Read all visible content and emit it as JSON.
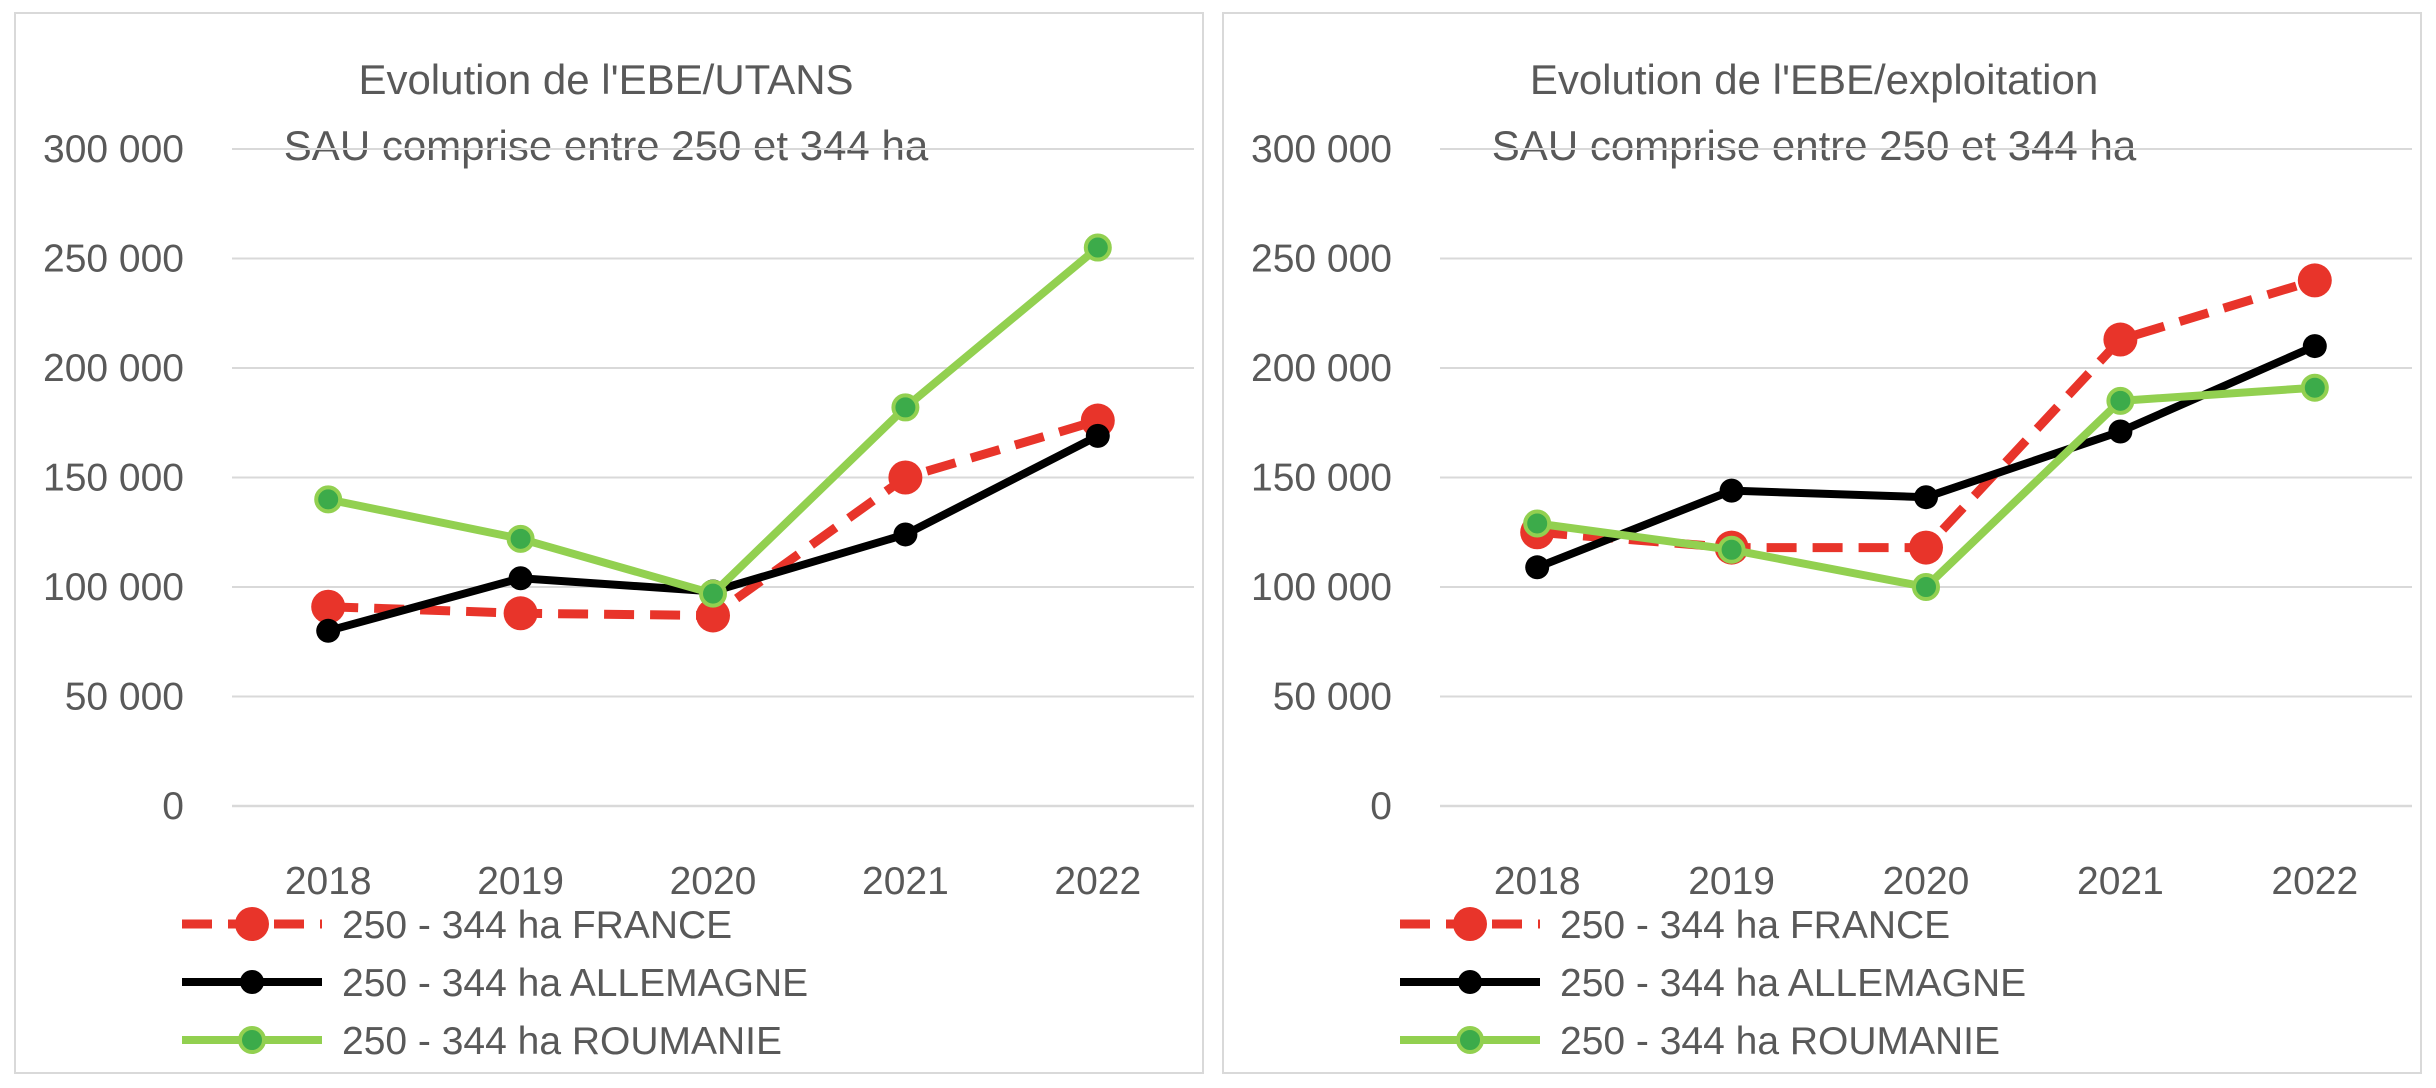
{
  "chart_data": [
    {
      "type": "line",
      "title": "Evolution de l'EBE/UTANS",
      "subtitle": "SAU comprise entre 250 et 344 ha",
      "xlabel": "",
      "ylabel": "",
      "categories": [
        "2018",
        "2019",
        "2020",
        "2021",
        "2022"
      ],
      "ylim": [
        0,
        300000
      ],
      "yticks": [
        0,
        50000,
        100000,
        150000,
        200000,
        250000,
        300000
      ],
      "ytick_labels": [
        "0",
        "50 000",
        "100 000",
        "150 000",
        "200 000",
        "250 000",
        "300 000"
      ],
      "grid": true,
      "legend_position": "bottom",
      "series": [
        {
          "name": "250 - 344 ha  FRANCE",
          "values": [
            91000,
            88000,
            87000,
            150000,
            176000
          ],
          "color": "#e8342a",
          "style": "dashed"
        },
        {
          "name": "250 - 344 ha  ALLEMAGNE",
          "values": [
            80000,
            104000,
            98000,
            124000,
            169000
          ],
          "color": "#000000",
          "style": "solid"
        },
        {
          "name": "250 - 344 ha  ROUMANIE",
          "values": [
            140000,
            122000,
            97000,
            182000,
            255000
          ],
          "color": "#92d050",
          "style": "solid"
        }
      ]
    },
    {
      "type": "line",
      "title": "Evolution de l'EBE/exploitation",
      "subtitle": "SAU comprise entre 250 et 344 ha",
      "xlabel": "",
      "ylabel": "",
      "categories": [
        "2018",
        "2019",
        "2020",
        "2021",
        "2022"
      ],
      "ylim": [
        0,
        300000
      ],
      "yticks": [
        0,
        50000,
        100000,
        150000,
        200000,
        250000,
        300000
      ],
      "ytick_labels": [
        "0",
        "50 000",
        "100 000",
        "150 000",
        "200 000",
        "250 000",
        "300 000"
      ],
      "grid": true,
      "legend_position": "bottom",
      "series": [
        {
          "name": "250 - 344 ha  FRANCE",
          "values": [
            125000,
            118000,
            118000,
            213000,
            240000
          ],
          "color": "#e8342a",
          "style": "dashed"
        },
        {
          "name": "250 - 344 ha  ALLEMAGNE",
          "values": [
            109000,
            144000,
            141000,
            171000,
            210000
          ],
          "color": "#000000",
          "style": "solid"
        },
        {
          "name": "250 - 344 ha  ROUMANIE",
          "values": [
            129000,
            117000,
            100000,
            185000,
            191000
          ],
          "color": "#92d050",
          "style": "solid"
        }
      ]
    }
  ]
}
